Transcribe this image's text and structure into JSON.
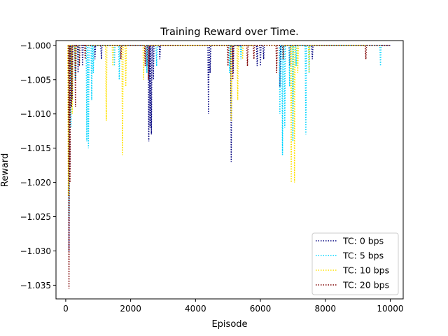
{
  "chart_data": {
    "type": "line",
    "title": "Training Reward over Time.",
    "xlabel": "Episode",
    "ylabel": "Reward",
    "xlim": [
      -300,
      10400
    ],
    "ylim": [
      -1.037,
      -0.9993
    ],
    "xticks": [
      0,
      2000,
      4000,
      6000,
      8000,
      10000
    ],
    "xtick_labels": [
      "0",
      "2000",
      "4000",
      "6000",
      "8000",
      "10000"
    ],
    "yticks": [
      -1.035,
      -1.03,
      -1.025,
      -1.02,
      -1.015,
      -1.01,
      -1.005,
      -1.0
    ],
    "ytick_labels": [
      "−1.035",
      "−1.030",
      "−1.025",
      "−1.020",
      "−1.015",
      "−1.010",
      "−1.005",
      "−1.000"
    ],
    "grid": false,
    "legend_position": "bottom-right",
    "baseline": -1.0,
    "series": [
      {
        "name": "TC: 0 bps",
        "color": "#00007f",
        "dips": [
          [
            100,
            -1.03
          ],
          [
            130,
            -1.018
          ],
          [
            200,
            -1.008
          ],
          [
            380,
            -1.004
          ],
          [
            520,
            -1.003
          ],
          [
            900,
            -1.002
          ],
          [
            1100,
            -1.002
          ],
          [
            2500,
            -1.003
          ],
          [
            2560,
            -1.014
          ],
          [
            2600,
            -1.012
          ],
          [
            2640,
            -1.013
          ],
          [
            2700,
            -1.005
          ],
          [
            2900,
            -1.002
          ],
          [
            4400,
            -1.01
          ],
          [
            4450,
            -1.004
          ],
          [
            5100,
            -1.017
          ],
          [
            5160,
            -1.004
          ],
          [
            5900,
            -1.003
          ],
          [
            6000,
            -1.003
          ],
          [
            6100,
            -1.002
          ],
          [
            6600,
            -1.006
          ],
          [
            6900,
            -1.003
          ],
          [
            7600,
            -1.002
          ]
        ]
      },
      {
        "name": "TC: 5 bps",
        "color": "#00d4ff",
        "dips": [
          [
            100,
            -1.025
          ],
          [
            160,
            -1.012
          ],
          [
            300,
            -1.005
          ],
          [
            400,
            -1.003
          ],
          [
            650,
            -1.014
          ],
          [
            700,
            -1.015
          ],
          [
            800,
            -1.008
          ],
          [
            850,
            -1.004
          ],
          [
            1500,
            -1.003
          ],
          [
            1650,
            -1.005
          ],
          [
            2500,
            -1.004
          ],
          [
            2800,
            -1.003
          ],
          [
            5050,
            -1.004
          ],
          [
            5400,
            -1.002
          ],
          [
            6600,
            -1.01
          ],
          [
            6680,
            -1.016
          ],
          [
            6750,
            -1.012
          ],
          [
            6900,
            -1.006
          ],
          [
            7000,
            -1.014
          ],
          [
            7100,
            -1.003
          ],
          [
            7400,
            -1.013
          ],
          [
            7500,
            -1.004
          ],
          [
            9700,
            -1.003
          ]
        ]
      },
      {
        "name": "TC: 10 bps",
        "color": "#ffe100",
        "dips": [
          [
            80,
            -1.022
          ],
          [
            200,
            -1.01
          ],
          [
            300,
            -1.003
          ],
          [
            1250,
            -1.011
          ],
          [
            1450,
            -1.003
          ],
          [
            1750,
            -1.016
          ],
          [
            1850,
            -1.006
          ],
          [
            2400,
            -1.005
          ],
          [
            5100,
            -1.011
          ],
          [
            5300,
            -1.008
          ],
          [
            5450,
            -1.002
          ],
          [
            6950,
            -1.02
          ],
          [
            7050,
            -1.02
          ],
          [
            7150,
            -1.004
          ],
          [
            7500,
            -1.004
          ]
        ]
      },
      {
        "name": "TC: 20 bps",
        "color": "#7f0000",
        "dips": [
          [
            100,
            -1.0355
          ],
          [
            130,
            -1.02
          ],
          [
            180,
            -1.009
          ],
          [
            300,
            -1.009
          ],
          [
            420,
            -1.003
          ],
          [
            600,
            -1.002
          ],
          [
            1700,
            -1.002
          ],
          [
            2450,
            -1.003
          ],
          [
            2550,
            -1.005
          ],
          [
            5000,
            -1.003
          ],
          [
            5150,
            -1.005
          ],
          [
            5600,
            -1.003
          ],
          [
            5800,
            -1.002
          ],
          [
            6500,
            -1.004
          ],
          [
            6700,
            -1.002
          ],
          [
            9250,
            -1.002
          ]
        ]
      }
    ]
  }
}
